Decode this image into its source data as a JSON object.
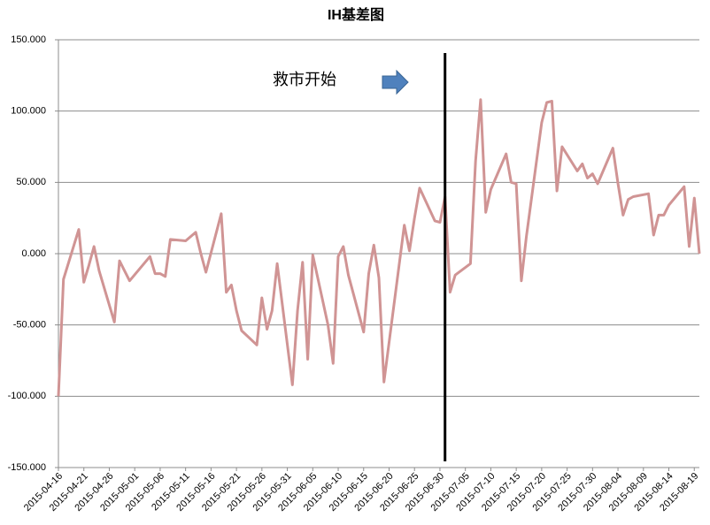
{
  "chart_data": {
    "type": "line",
    "title": "IH基差图",
    "annotation": "救市开始",
    "vline": "2015-07-01",
    "x": [
      "2015-04-16",
      "2015-04-17",
      "2015-04-20",
      "2015-04-21",
      "2015-04-22",
      "2015-04-23",
      "2015-04-24",
      "2015-04-27",
      "2015-04-28",
      "2015-04-29",
      "2015-04-30",
      "2015-05-04",
      "2015-05-05",
      "2015-05-06",
      "2015-05-07",
      "2015-05-08",
      "2015-05-11",
      "2015-05-12",
      "2015-05-13",
      "2015-05-14",
      "2015-05-15",
      "2015-05-18",
      "2015-05-19",
      "2015-05-20",
      "2015-05-21",
      "2015-05-22",
      "2015-05-25",
      "2015-05-26",
      "2015-05-27",
      "2015-05-28",
      "2015-05-29",
      "2015-06-01",
      "2015-06-02",
      "2015-06-03",
      "2015-06-04",
      "2015-06-05",
      "2015-06-08",
      "2015-06-09",
      "2015-06-10",
      "2015-06-11",
      "2015-06-12",
      "2015-06-15",
      "2015-06-16",
      "2015-06-17",
      "2015-06-18",
      "2015-06-19",
      "2015-06-23",
      "2015-06-24",
      "2015-06-25",
      "2015-06-26",
      "2015-06-29",
      "2015-06-30",
      "2015-07-01",
      "2015-07-02",
      "2015-07-03",
      "2015-07-06",
      "2015-07-07",
      "2015-07-08",
      "2015-07-09",
      "2015-07-10",
      "2015-07-13",
      "2015-07-14",
      "2015-07-15",
      "2015-07-16",
      "2015-07-17",
      "2015-07-20",
      "2015-07-21",
      "2015-07-22",
      "2015-07-23",
      "2015-07-24",
      "2015-07-27",
      "2015-07-28",
      "2015-07-29",
      "2015-07-30",
      "2015-07-31",
      "2015-08-03",
      "2015-08-04",
      "2015-08-05",
      "2015-08-06",
      "2015-08-07",
      "2015-08-10",
      "2015-08-11",
      "2015-08-12",
      "2015-08-13",
      "2015-08-14",
      "2015-08-17",
      "2015-08-18",
      "2015-08-19",
      "2015-08-20"
    ],
    "series": [
      {
        "color": "#d09494",
        "values": [
          -100,
          -18,
          17,
          -20,
          -8,
          5,
          -12,
          -48,
          -5,
          -12,
          -19,
          -2,
          -14,
          -14,
          -16,
          10,
          9,
          12,
          15,
          0,
          -13,
          28,
          -27,
          -22,
          -40,
          -54,
          -64,
          -31,
          -53,
          -40,
          -7,
          -92,
          -40,
          -6,
          -74,
          -1,
          -50,
          -77,
          -2,
          5,
          -15,
          -55,
          -14,
          6,
          -17,
          -90,
          20,
          2,
          25,
          46,
          23,
          22,
          40,
          -27,
          -15,
          -7,
          65,
          108,
          29,
          45,
          70,
          50,
          49,
          -19,
          12,
          92,
          106,
          107,
          44,
          75,
          58,
          63,
          53,
          56,
          49,
          74,
          49,
          27,
          38,
          40,
          42,
          13,
          27,
          27,
          34,
          47,
          5,
          39,
          0
        ]
      }
    ],
    "xlim": [
      "2015-04-16",
      "2015-08-20"
    ],
    "xticks": [
      "2015-04-16",
      "2015-04-21",
      "2015-04-26",
      "2015-05-01",
      "2015-05-06",
      "2015-05-11",
      "2015-05-16",
      "2015-05-21",
      "2015-05-26",
      "2015-05-31",
      "2015-06-05",
      "2015-06-10",
      "2015-06-15",
      "2015-06-20",
      "2015-06-25",
      "2015-06-30",
      "2015-07-05",
      "2015-07-10",
      "2015-07-15",
      "2015-07-20",
      "2015-07-25",
      "2015-07-30",
      "2015-08-04",
      "2015-08-09",
      "2015-08-14",
      "2015-08-19"
    ],
    "ylim": [
      -150,
      150
    ],
    "yticks": [
      {
        "value": -150,
        "label": "-150.000"
      },
      {
        "value": -100,
        "label": "-100.000"
      },
      {
        "value": -50,
        "label": "-50.000"
      },
      {
        "value": 0,
        "label": "0.000"
      },
      {
        "value": 50,
        "label": "50.000"
      },
      {
        "value": 100,
        "label": "100.000"
      },
      {
        "value": 150,
        "label": "150.000"
      }
    ],
    "grid": true
  }
}
